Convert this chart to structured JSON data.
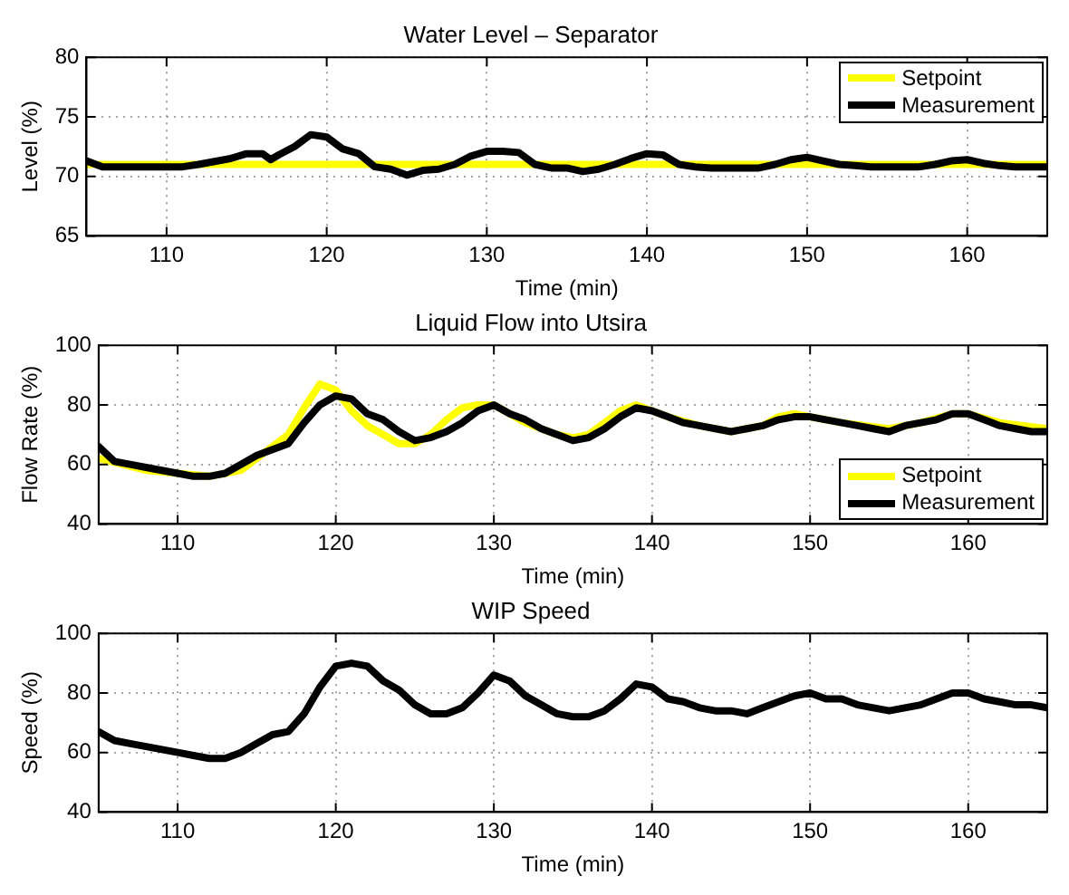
{
  "chart_data": [
    {
      "type": "line",
      "title": "Water Level – Separator",
      "xlabel": "Time (min)",
      "ylabel": "Level (%)",
      "xlim": [
        105,
        165
      ],
      "xticks": [
        110,
        120,
        130,
        140,
        150,
        160
      ],
      "ylim": [
        65,
        80
      ],
      "yticks": [
        65,
        70,
        75,
        80
      ],
      "grid": true,
      "legend": "top right",
      "marker": "none",
      "line_style": "solid",
      "series": [
        {
          "name": "Setpoint",
          "color": "#ffff00",
          "x": [
            105,
            165
          ],
          "values": [
            71,
            71
          ]
        },
        {
          "name": "Measurement",
          "color": "#000000",
          "x": [
            105,
            106,
            111,
            112,
            114,
            115,
            116,
            116.5,
            117,
            118,
            119,
            120,
            121,
            122,
            123,
            124,
            125,
            126,
            127,
            128,
            129,
            130,
            131,
            132,
            133,
            134,
            135,
            136,
            137,
            138,
            139,
            140,
            141,
            142,
            143,
            144,
            147,
            148,
            149,
            150,
            151,
            152,
            153,
            154,
            157,
            158,
            159,
            160,
            161,
            162,
            163,
            165
          ],
          "values": [
            71.3,
            70.8,
            70.8,
            71,
            71.5,
            71.9,
            71.9,
            71.4,
            71.8,
            72.5,
            73.5,
            73.3,
            72.3,
            71.9,
            70.8,
            70.6,
            70.1,
            70.5,
            70.6,
            71,
            71.7,
            72.1,
            72.1,
            72,
            71,
            70.7,
            70.7,
            70.4,
            70.6,
            71,
            71.5,
            71.9,
            71.8,
            71,
            70.8,
            70.7,
            70.7,
            71,
            71.4,
            71.6,
            71.3,
            71,
            70.9,
            70.8,
            70.8,
            71,
            71.3,
            71.4,
            71.1,
            70.9,
            70.8,
            70.8
          ]
        }
      ]
    },
    {
      "type": "line",
      "title": "Liquid Flow into Utsira",
      "xlabel": "Time (min)",
      "ylabel": "Flow Rate (%)",
      "xlim": [
        105,
        165
      ],
      "xticks": [
        110,
        120,
        130,
        140,
        150,
        160
      ],
      "ylim": [
        40,
        100
      ],
      "yticks": [
        40,
        60,
        80,
        100
      ],
      "grid": true,
      "legend": "bottom right",
      "marker": "none",
      "line_style": "solid",
      "series": [
        {
          "name": "Setpoint",
          "color": "#ffff00",
          "x": [
            105,
            108,
            110,
            112,
            114,
            115,
            116,
            117,
            118,
            119,
            120,
            121,
            122,
            123,
            124,
            125,
            126,
            127,
            128,
            129,
            130,
            131,
            132,
            133,
            134,
            135,
            136,
            137,
            138,
            139,
            140,
            141,
            143,
            145,
            147,
            148,
            149,
            150,
            152,
            155,
            157,
            159,
            160,
            162,
            165
          ],
          "values": [
            62,
            58,
            57,
            56,
            58,
            62,
            66,
            70,
            79,
            87,
            85,
            78,
            73,
            70,
            67,
            67,
            70,
            75,
            79,
            80,
            80,
            77,
            74,
            72,
            70,
            69,
            70,
            74,
            78,
            80,
            78,
            76,
            73,
            71,
            73,
            76,
            77,
            76,
            74,
            72,
            74,
            77,
            77,
            74,
            72
          ]
        },
        {
          "name": "Measurement",
          "color": "#000000",
          "x": [
            105,
            106,
            107,
            108,
            109,
            110,
            111,
            112,
            113,
            114,
            115,
            116,
            117,
            118,
            119,
            120,
            121,
            122,
            123,
            124,
            125,
            126,
            127,
            128,
            129,
            130,
            131,
            132,
            133,
            134,
            135,
            136,
            137,
            138,
            139,
            140,
            141,
            142,
            143,
            144,
            145,
            146,
            147,
            148,
            149,
            150,
            151,
            152,
            153,
            154,
            155,
            156,
            157,
            158,
            159,
            160,
            161,
            162,
            163,
            164,
            165
          ],
          "values": [
            66,
            61,
            60,
            59,
            58,
            57,
            56,
            56,
            57,
            60,
            63,
            65,
            67,
            74,
            80,
            83,
            82,
            77,
            75,
            71,
            68,
            69,
            71,
            74,
            78,
            80,
            77,
            75,
            72,
            70,
            68,
            69,
            72,
            76,
            79,
            78,
            76,
            74,
            73,
            72,
            71,
            72,
            73,
            75,
            76,
            76,
            75,
            74,
            73,
            72,
            71,
            73,
            74,
            75,
            77,
            77,
            75,
            73,
            72,
            71,
            71
          ]
        }
      ]
    },
    {
      "type": "line",
      "title": "WIP Speed",
      "xlabel": "Time (min)",
      "ylabel": "Speed (%)",
      "xlim": [
        105,
        165
      ],
      "xticks": [
        110,
        120,
        130,
        140,
        150,
        160
      ],
      "ylim": [
        40,
        100
      ],
      "yticks": [
        40,
        60,
        80,
        100
      ],
      "grid": true,
      "marker": "none",
      "line_style": "solid",
      "series": [
        {
          "color": "#000000",
          "x": [
            105,
            106,
            107,
            108,
            109,
            110,
            111,
            112,
            113,
            114,
            115,
            116,
            117,
            118,
            119,
            120,
            121,
            122,
            123,
            124,
            125,
            126,
            127,
            128,
            129,
            130,
            131,
            132,
            133,
            134,
            135,
            136,
            137,
            138,
            139,
            140,
            141,
            142,
            143,
            144,
            145,
            146,
            147,
            148,
            149,
            150,
            151,
            152,
            153,
            154,
            155,
            156,
            157,
            158,
            159,
            160,
            161,
            162,
            163,
            164,
            165
          ],
          "values": [
            67,
            64,
            63,
            62,
            61,
            60,
            59,
            58,
            58,
            60,
            63,
            66,
            67,
            73,
            82,
            89,
            90,
            89,
            84,
            81,
            76,
            73,
            73,
            75,
            80,
            86,
            84,
            79,
            76,
            73,
            72,
            72,
            74,
            78,
            83,
            82,
            78,
            77,
            75,
            74,
            74,
            73,
            75,
            77,
            79,
            80,
            78,
            78,
            76,
            75,
            74,
            75,
            76,
            78,
            80,
            80,
            78,
            77,
            76,
            76,
            75
          ]
        }
      ]
    }
  ]
}
